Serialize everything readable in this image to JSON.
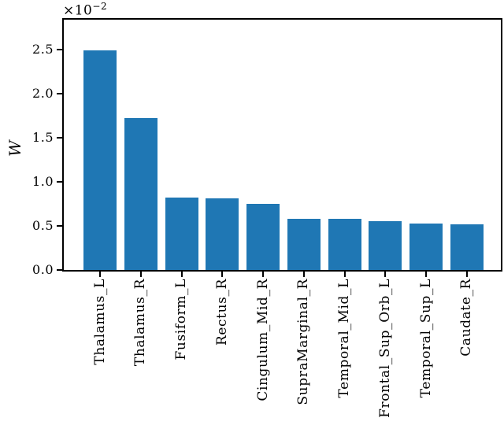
{
  "figure": {
    "background_color": "#ffffff",
    "frame_color": "#000000"
  },
  "chart_data": {
    "type": "bar",
    "title": "",
    "xlabel": "",
    "ylabel": "W",
    "ylabel_char": "W",
    "offset_base": "×10",
    "offset_exponent": "−2",
    "offset_text": "×10⁻²",
    "categories": [
      "Thalamus_L",
      "Thalamus_R",
      "Fusiform_L",
      "Rectus_R",
      "Cingulum_Mid_R",
      "SupraMarginal_R",
      "Temporal_Mid_L",
      "Frontal_Sup_Orb_L",
      "Temporal_Sup_L",
      "Caudate_R"
    ],
    "values": [
      2.49,
      1.72,
      0.82,
      0.81,
      0.75,
      0.58,
      0.58,
      0.55,
      0.53,
      0.52
    ],
    "value_scale": "1e-2",
    "ylim": [
      0.0,
      2.84
    ],
    "yticks": [
      0.0,
      0.5,
      1.0,
      1.5,
      2.0,
      2.5
    ],
    "ytick_labels": [
      "0.0",
      "0.5",
      "1.0",
      "1.5",
      "2.0",
      "2.5"
    ],
    "bar_color": "#1f77b4",
    "grid": false,
    "legend": null
  }
}
